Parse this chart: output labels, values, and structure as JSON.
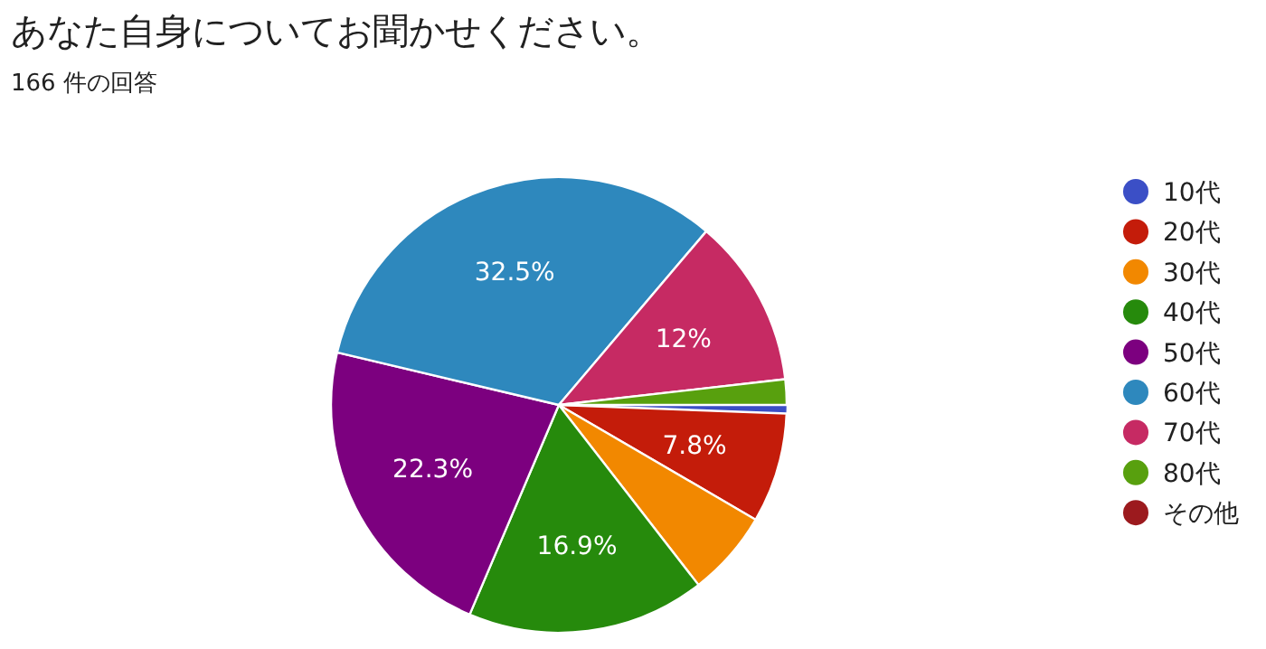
{
  "chart_data": {
    "type": "pie",
    "title": "あなた自身についてお聞かせください。",
    "subtitle": "166 件の回答",
    "categories": [
      "10代",
      "20代",
      "30代",
      "40代",
      "50代",
      "60代",
      "70代",
      "80代",
      "その他"
    ],
    "values": [
      0.6,
      7.8,
      6.1,
      16.9,
      22.3,
      32.5,
      12.0,
      1.8,
      0
    ],
    "value_labels": [
      null,
      "7.8%",
      null,
      "16.9%",
      "22.3%",
      "32.5%",
      "12%",
      null,
      null
    ],
    "colors": [
      "#3b4fc6",
      "#c41c0a",
      "#f28800",
      "#268a0c",
      "#7c007f",
      "#2e88bd",
      "#c62a63",
      "#58a00e",
      "#9c1a1e"
    ],
    "legend": "right"
  }
}
